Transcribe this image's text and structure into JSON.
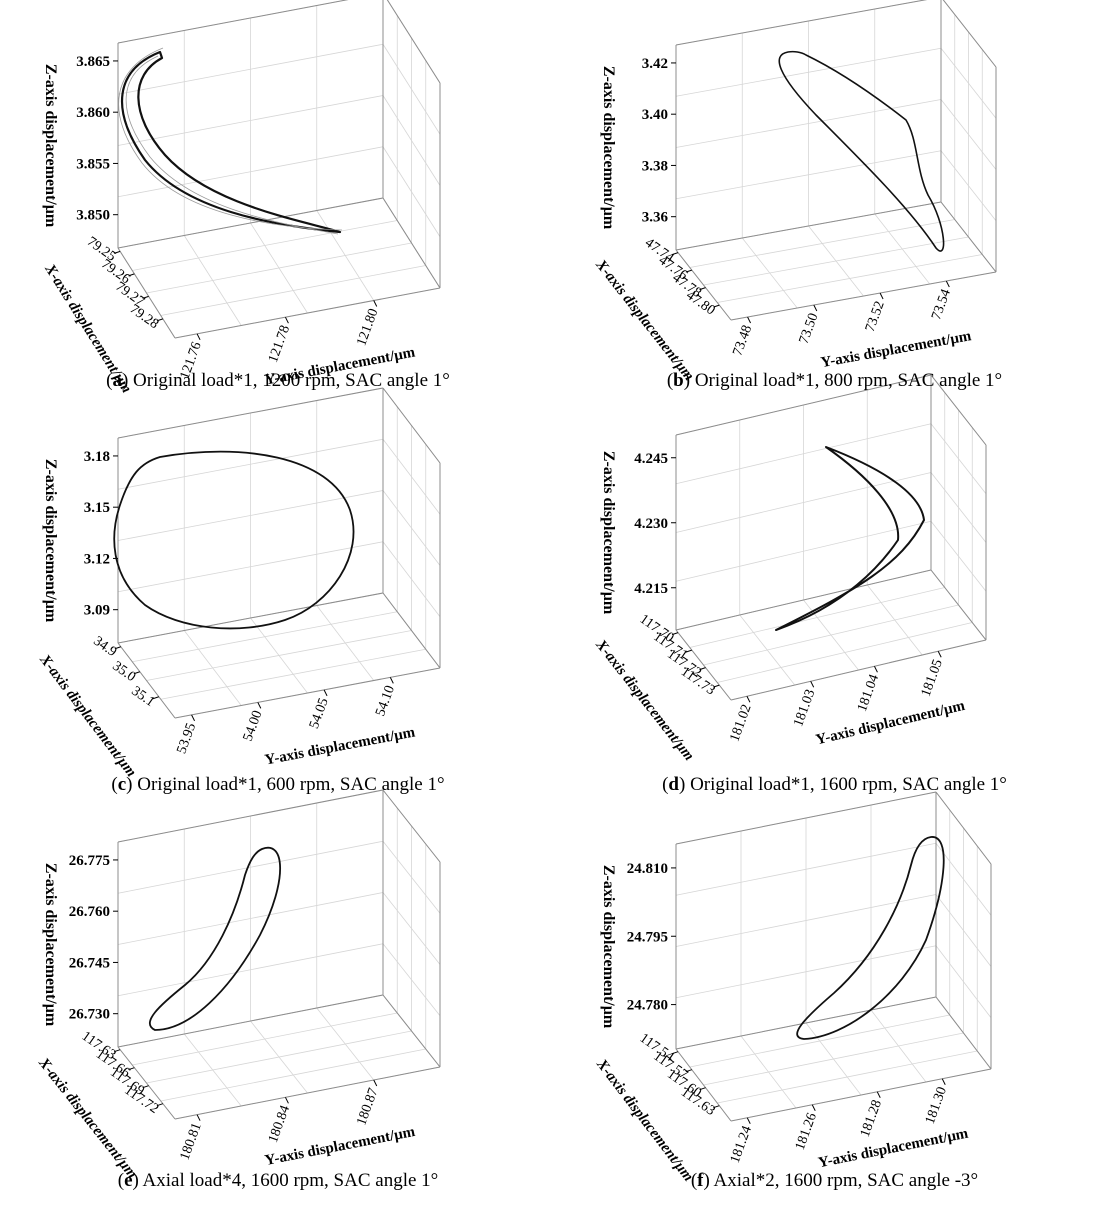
{
  "chart_data": [
    {
      "id": "a",
      "type": "line",
      "caption_letter": "a",
      "caption_text": "Original load*1, 1200 rpm, SAC angle 1°",
      "zlabel": "Z-axis displacement/μm",
      "xlabel": "X-axis displacement/μm",
      "ylabel": "Y-axis displacement/μm",
      "z_ticks": [
        "3.865",
        "3.860",
        "3.855",
        "3.850"
      ],
      "x_ticks": [
        "79.25",
        "79.26",
        "79.27",
        "79.28"
      ],
      "y_ticks": [
        "121.76",
        "121.78",
        "121.80"
      ],
      "orbit_shape": "thin crescent"
    },
    {
      "id": "b",
      "type": "line",
      "caption_letter": "b",
      "caption_text": "Original load*1, 800 rpm, SAC angle 1°",
      "zlabel": "Z-axis displacement/μm",
      "xlabel": "X-axis displacement/μm",
      "ylabel": "Y-axis displacement/μm",
      "z_ticks": [
        "3.42",
        "3.40",
        "3.38",
        "3.36"
      ],
      "x_ticks": [
        "47.74",
        "47.76",
        "47.78",
        "47.80"
      ],
      "y_ticks": [
        "73.48",
        "73.50",
        "73.52",
        "73.54"
      ],
      "orbit_shape": "elongated loop"
    },
    {
      "id": "c",
      "type": "line",
      "caption_letter": "c",
      "caption_text": "Original load*1, 600 rpm, SAC angle 1°",
      "zlabel": "Z-axis displacement/μm",
      "xlabel": "X-axis displacement/μm",
      "ylabel": "Y-axis displacement/μm",
      "z_ticks": [
        "3.18",
        "3.15",
        "3.12",
        "3.09"
      ],
      "x_ticks": [
        "34.9",
        "35.0",
        "35.1"
      ],
      "y_ticks": [
        "53.95",
        "54.00",
        "54.05",
        "54.10"
      ],
      "orbit_shape": "rounded closed loop"
    },
    {
      "id": "d",
      "type": "line",
      "caption_letter": "d",
      "caption_text": "Original load*1, 1600 rpm, SAC angle 1°",
      "zlabel": "Z-axis displacement/μm",
      "xlabel": "X-axis displacement/μm",
      "ylabel": "Y-axis displacement/μm",
      "z_ticks": [
        "4.245",
        "4.230",
        "4.215"
      ],
      "x_ticks": [
        "117.70",
        "117.71",
        "117.72",
        "117.73"
      ],
      "y_ticks": [
        "181.02",
        "181.03",
        "181.04",
        "181.05"
      ],
      "orbit_shape": "chevron loop"
    },
    {
      "id": "e",
      "type": "line",
      "caption_letter": "e",
      "caption_text": "Axial load*4, 1600 rpm, SAC angle 1°",
      "zlabel": "Z-axis displacement/μm",
      "xlabel": "X-axis displacement/μm",
      "ylabel": "Y-axis displacement/μm",
      "z_ticks": [
        "26.775",
        "26.760",
        "26.745",
        "26.730"
      ],
      "x_ticks": [
        "117.63",
        "117.66",
        "117.69",
        "117.72"
      ],
      "y_ticks": [
        "180.81",
        "180.84",
        "180.87"
      ],
      "orbit_shape": "diagonal teardrop"
    },
    {
      "id": "f",
      "type": "line",
      "caption_letter": "f",
      "caption_text": "Axial*2, 1600 rpm, SAC angle -3°",
      "zlabel": "Z-axis displacement/μm",
      "xlabel": "X-axis displacement/μm",
      "ylabel": "Y-axis displacement/μm",
      "z_ticks": [
        "24.810",
        "24.795",
        "24.780"
      ],
      "x_ticks": [
        "117.54",
        "117.57",
        "117.60",
        "117.63"
      ],
      "y_ticks": [
        "181.24",
        "181.26",
        "181.28",
        "181.30"
      ],
      "orbit_shape": "diagonal teardrop"
    }
  ],
  "colors": {
    "frame": "#8c8c8c",
    "grid": "#d6d6d6",
    "trace": "#111111",
    "trace_ghost": "#9a9a9a"
  }
}
